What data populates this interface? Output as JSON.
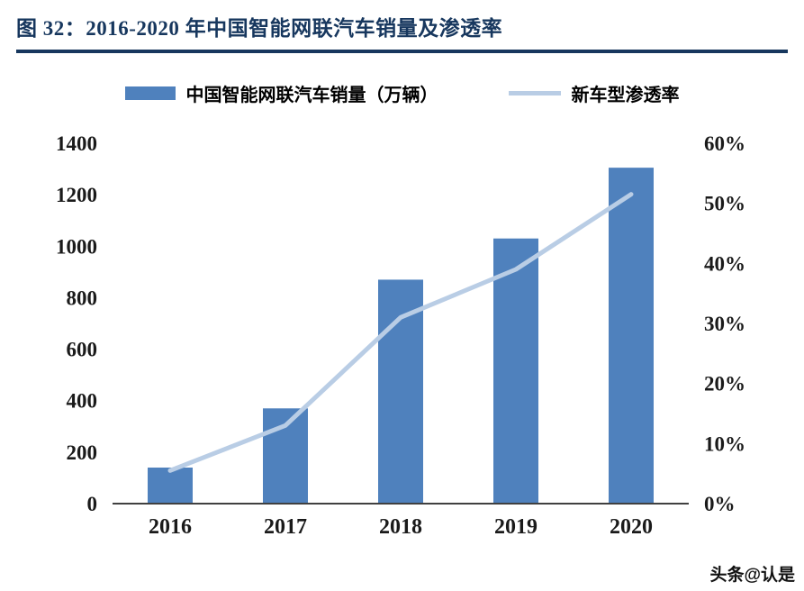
{
  "title": {
    "prefix": "图 32：",
    "text": "2016-2020 年中国智能网联汽车销量及渗透率"
  },
  "legend": [
    {
      "label": "中国智能网联汽车销量（万辆）",
      "type": "bar",
      "color": "#4f81bd"
    },
    {
      "label": "新车型渗透率",
      "type": "line",
      "color": "#b9cde5"
    }
  ],
  "watermark": "头条@认是",
  "colors": {
    "bar": "#4f81bd",
    "line": "#b9cde5",
    "title": "#17375e",
    "axis_text": "#1a1a1a",
    "axis_line": "#404040"
  },
  "chart_data": {
    "type": "bar",
    "title": "2016-2020 年中国智能网联汽车销量及渗透率",
    "categories": [
      "2016",
      "2017",
      "2018",
      "2019",
      "2020"
    ],
    "series": [
      {
        "name": "中国智能网联汽车销量（万辆）",
        "type": "bar",
        "axis": "left",
        "values": [
          140,
          370,
          870,
          1030,
          1305
        ]
      },
      {
        "name": "新车型渗透率",
        "type": "line",
        "axis": "right",
        "values": [
          5.5,
          13,
          31,
          39,
          51.5
        ]
      }
    ],
    "left_axis": {
      "min": 0,
      "max": 1400,
      "step": 200,
      "ticks": [
        "0",
        "200",
        "400",
        "600",
        "800",
        "1000",
        "1200",
        "1400"
      ]
    },
    "right_axis": {
      "min": 0,
      "max": 60,
      "step": 10,
      "ticks": [
        "0%",
        "10%",
        "20%",
        "30%",
        "40%",
        "50%",
        "60%"
      ]
    },
    "grid": false,
    "legend_position": "top"
  }
}
